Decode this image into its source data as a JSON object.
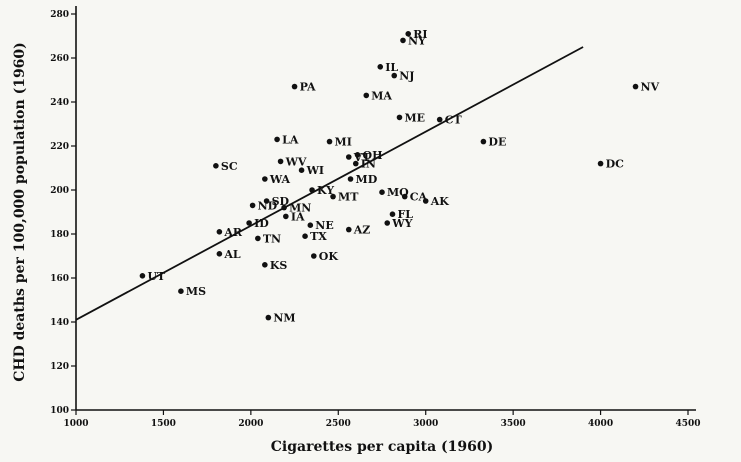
{
  "chart_data": {
    "type": "scatter",
    "title": "",
    "xlabel": "Cigarettes per capita (1960)",
    "ylabel": "CHD deaths per 100,000 population (1960)",
    "xlim": [
      1000,
      4500
    ],
    "ylim": [
      100,
      280
    ],
    "x_ticks": [
      "1000",
      "1500",
      "2000",
      "2500",
      "3000",
      "3500",
      "4000",
      "4500"
    ],
    "y_ticks": [
      "100",
      "120",
      "140",
      "160",
      "180",
      "200",
      "220",
      "240",
      "260",
      "280"
    ],
    "grid": false,
    "series": [
      {
        "points": [
          {
            "label": "RI",
            "x": 2900,
            "y": 271
          },
          {
            "label": "NY",
            "x": 2870,
            "y": 268
          },
          {
            "label": "IL",
            "x": 2740,
            "y": 256
          },
          {
            "label": "NJ",
            "x": 2820,
            "y": 252
          },
          {
            "label": "PA",
            "x": 2250,
            "y": 247
          },
          {
            "label": "MA",
            "x": 2660,
            "y": 243
          },
          {
            "label": "NV",
            "x": 4200,
            "y": 247
          },
          {
            "label": "CT",
            "x": 3080,
            "y": 232
          },
          {
            "label": "ME",
            "x": 2850,
            "y": 233
          },
          {
            "label": "LA",
            "x": 2150,
            "y": 223
          },
          {
            "label": "MI",
            "x": 2450,
            "y": 222
          },
          {
            "label": "DE",
            "x": 3330,
            "y": 222
          },
          {
            "label": "OH",
            "x": 2610,
            "y": 216
          },
          {
            "label": "SC",
            "x": 1800,
            "y": 211
          },
          {
            "label": "WV",
            "x": 2170,
            "y": 213
          },
          {
            "label": "WI",
            "x": 2290,
            "y": 209
          },
          {
            "label": "VT",
            "x": 2560,
            "y": 215
          },
          {
            "label": "IN",
            "x": 2600,
            "y": 212
          },
          {
            "label": "DC",
            "x": 4000,
            "y": 212
          },
          {
            "label": "WA",
            "x": 2080,
            "y": 205
          },
          {
            "label": "KY",
            "x": 2350,
            "y": 200
          },
          {
            "label": "MD",
            "x": 2570,
            "y": 205
          },
          {
            "label": "MO",
            "x": 2750,
            "y": 199
          },
          {
            "label": "SD",
            "x": 2090,
            "y": 195
          },
          {
            "label": "MN",
            "x": 2190,
            "y": 192
          },
          {
            "label": "MT",
            "x": 2470,
            "y": 197
          },
          {
            "label": "CA",
            "x": 2880,
            "y": 197
          },
          {
            "label": "AK",
            "x": 3000,
            "y": 195
          },
          {
            "label": "ND",
            "x": 2010,
            "y": 193
          },
          {
            "label": "IA",
            "x": 2200,
            "y": 188
          },
          {
            "label": "FL",
            "x": 2810,
            "y": 189
          },
          {
            "label": "ID",
            "x": 1990,
            "y": 185
          },
          {
            "label": "NE",
            "x": 2340,
            "y": 184
          },
          {
            "label": "WY",
            "x": 2780,
            "y": 185
          },
          {
            "label": "AR",
            "x": 1820,
            "y": 181
          },
          {
            "label": "AZ",
            "x": 2560,
            "y": 182
          },
          {
            "label": "TN",
            "x": 2040,
            "y": 178
          },
          {
            "label": "TX",
            "x": 2310,
            "y": 179
          },
          {
            "label": "AL",
            "x": 1820,
            "y": 171
          },
          {
            "label": "OK",
            "x": 2360,
            "y": 170
          },
          {
            "label": "KS",
            "x": 2080,
            "y": 166
          },
          {
            "label": "UT",
            "x": 1380,
            "y": 161
          },
          {
            "label": "MS",
            "x": 1600,
            "y": 154
          },
          {
            "label": "NM",
            "x": 2100,
            "y": 142
          }
        ]
      }
    ],
    "trend_line": {
      "x": [
        1000,
        3900
      ],
      "y": [
        141,
        265
      ]
    }
  }
}
